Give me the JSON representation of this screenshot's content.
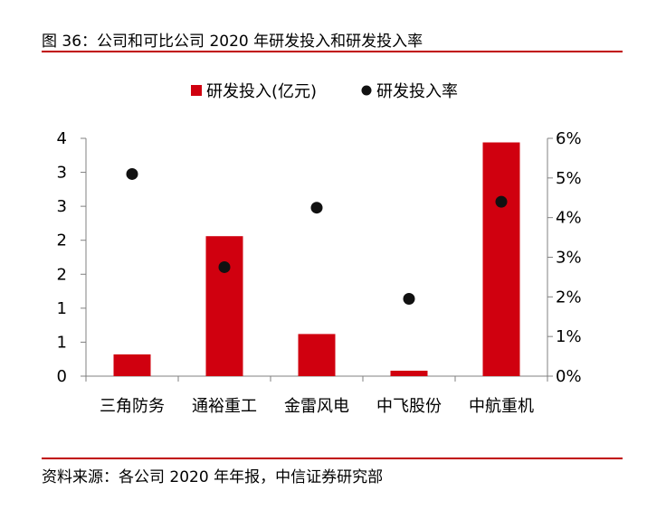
{
  "figure_title": "图 36：公司和可比公司 2020 年研发投入和研发投入率",
  "source_note": "资料来源：各公司 2020 年年报，中信证券研究部",
  "colors": {
    "bar": "#d0000f",
    "dot": "#111111",
    "rule": "#c00000",
    "axis": "#808080"
  },
  "chart_data": {
    "type": "bar",
    "categories": [
      "三角防务",
      "通裕重工",
      "金雷风电",
      "中飞股份",
      "中航重机"
    ],
    "series": [
      {
        "name": "研发投入(亿元)",
        "type": "bar",
        "axis": "left",
        "values": [
          0.32,
          2.06,
          0.62,
          0.08,
          3.44
        ]
      },
      {
        "name": "研发投入率",
        "type": "scatter",
        "axis": "right",
        "values": [
          5.1,
          2.75,
          4.25,
          1.95,
          4.4
        ]
      }
    ],
    "left_axis": {
      "ylim": [
        0,
        3.5
      ],
      "tick_values": [
        0,
        0.5,
        1,
        1.5,
        2,
        2.5,
        3,
        3.5
      ],
      "tick_labels": [
        "0",
        "1",
        "1",
        "2",
        "2",
        "3",
        "3",
        "4"
      ]
    },
    "right_axis": {
      "ylim": [
        0,
        6
      ],
      "tick_values": [
        0,
        1,
        2,
        3,
        4,
        5,
        6
      ],
      "tick_labels": [
        "0%",
        "1%",
        "2%",
        "3%",
        "4%",
        "5%",
        "6%"
      ]
    },
    "legend": {
      "position": "top",
      "entries": [
        "研发投入(亿元)",
        "研发投入率"
      ]
    },
    "grid": false
  }
}
